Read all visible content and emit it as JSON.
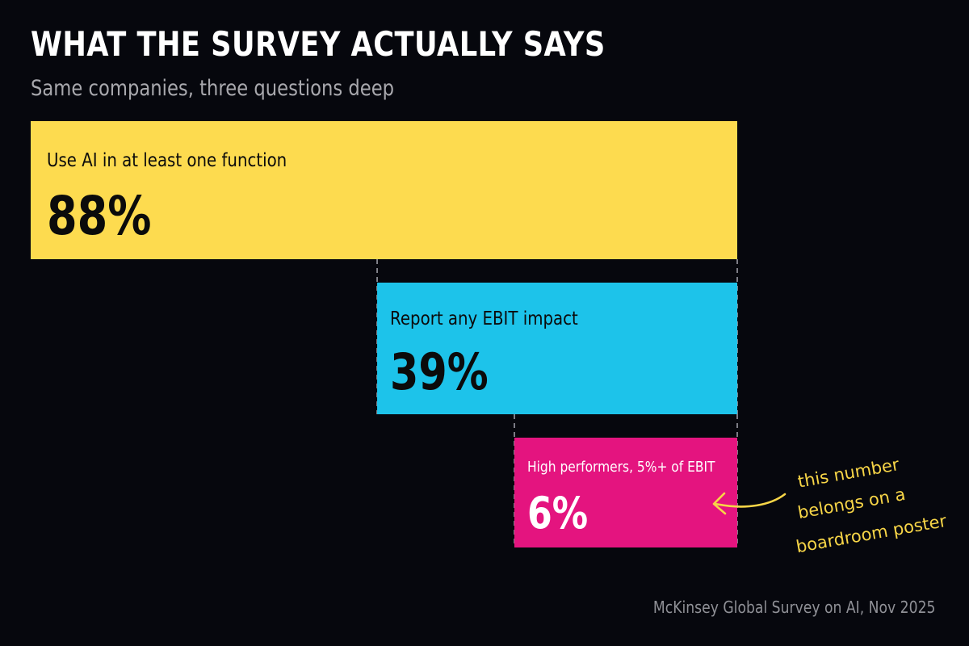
{
  "title": "WHAT THE SURVEY ACTUALLY SAYS",
  "subtitle": "Same companies, three questions deep",
  "source": "McKinsey Global Survey on AI, Nov 2025",
  "chart_data": {
    "type": "bar",
    "orientation": "horizontal",
    "title": "WHAT THE SURVEY ACTUALLY SAYS",
    "subtitle": "Same companies, three questions deep",
    "categories": [
      "Use AI in at least one function",
      "Report any EBIT impact",
      "High performers, 5%+ of EBIT"
    ],
    "values": [
      88,
      39,
      6
    ],
    "value_labels": [
      "88%",
      "39%",
      "6%"
    ],
    "units": "%",
    "colors": [
      "#fddb4f",
      "#1dc3ea",
      "#e4147f"
    ],
    "axis_ranges": {
      "x": [
        0,
        100
      ]
    },
    "grid": false,
    "annotation": {
      "lines": [
        "this number",
        "belongs on a",
        "boardroom poster"
      ],
      "target_category": "High performers, 5%+ of EBIT",
      "color": "#f7d547"
    },
    "source": "McKinsey Global Survey on AI, Nov 2025"
  }
}
